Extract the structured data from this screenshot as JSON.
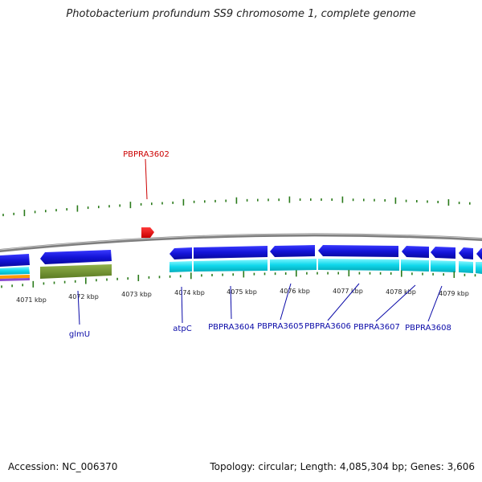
{
  "title": "Photobacterium profundum SS9 chromosome 1, complete genome",
  "footer": {
    "accession": "Accession: NC_006370",
    "summary": "Topology: circular; Length: 4,085,304 bp; Genes: 3,606"
  },
  "highlight": {
    "label": "PBPRA3602",
    "color": "#dd0000"
  },
  "scale": {
    "ticks": [
      "4071 kbp",
      "4072 kbp",
      "4073 kbp",
      "4074 kbp",
      "4075 kbp",
      "4076 kbp",
      "4077 kbp",
      "4078 kbp",
      "4079 kbp"
    ]
  },
  "genes": [
    "glmU",
    "atpC",
    "PBPRA3604",
    "PBPRA3605",
    "PBPRA3606",
    "PBPRA3607",
    "PBPRA3608"
  ],
  "colors": {
    "cds": "#1a1ad8",
    "gene": "#00d8e8",
    "rna": "#6b8a2a",
    "backbone": "#888888",
    "ticks": "#2a7a1a",
    "label": "#0a0aa8"
  }
}
